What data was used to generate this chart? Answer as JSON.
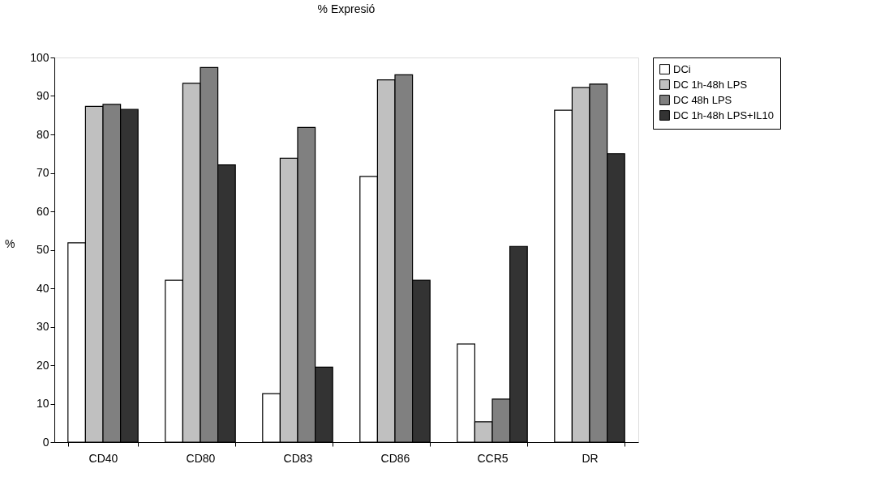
{
  "chart_data": {
    "type": "bar",
    "title": "% Expresió",
    "ylabel": "%",
    "categories": [
      "CD40",
      "CD80",
      "CD83",
      "CD86",
      "CCR5",
      "DR"
    ],
    "series": [
      {
        "name": "DCi",
        "color": "#ffffff",
        "values": [
          51.8,
          42.1,
          12.6,
          69.1,
          25.5,
          86.3
        ]
      },
      {
        "name": "DC 1h-48h LPS",
        "color": "#c0c0c0",
        "values": [
          87.3,
          93.3,
          73.8,
          94.2,
          5.3,
          92.2
        ]
      },
      {
        "name": "DC 48h LPS",
        "color": "#808080",
        "values": [
          87.8,
          97.4,
          81.8,
          95.5,
          11.2,
          93.1
        ]
      },
      {
        "name": "DC 1h-48h LPS+IL10",
        "color": "#333333",
        "values": [
          86.5,
          72.1,
          19.5,
          42.1,
          50.9,
          75.0
        ]
      }
    ],
    "ylim": [
      0,
      100
    ],
    "yticks": [
      0,
      10,
      20,
      30,
      40,
      50,
      60,
      70,
      80,
      90,
      100
    ],
    "grid": false,
    "legend": "right"
  }
}
